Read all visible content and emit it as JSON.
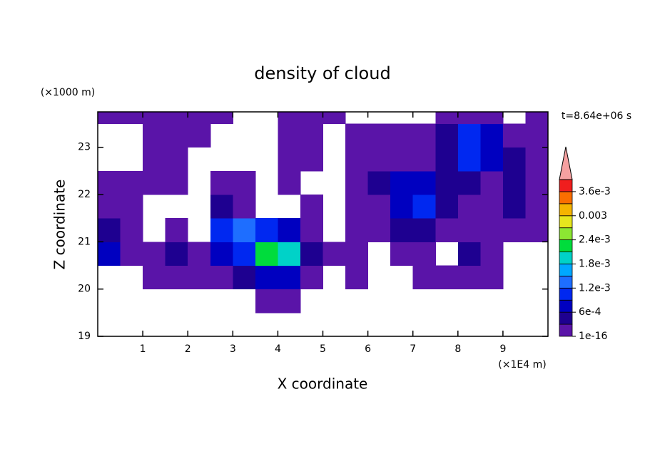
{
  "chart_data": {
    "type": "contour",
    "title": "density of cloud",
    "xlabel": "X coordinate",
    "ylabel": "Z coordinate",
    "x_unit_label": "(×1E4 m)",
    "y_unit_label": "(×1000 m)",
    "time_label": "t=8.64e+06 s",
    "xlim": [
      0,
      10
    ],
    "ylim": [
      19,
      23.75
    ],
    "xticks": [
      1,
      2,
      3,
      4,
      5,
      6,
      7,
      8,
      9
    ],
    "yticks": [
      19,
      20,
      21,
      22,
      23
    ],
    "x": [
      0.25,
      0.75,
      1.25,
      1.75,
      2.25,
      2.75,
      3.25,
      3.75,
      4.25,
      4.75,
      5.25,
      5.75,
      6.25,
      6.75,
      7.25,
      7.75,
      8.25,
      8.75,
      9.25,
      9.75
    ],
    "y": [
      19.75,
      20.25,
      20.75,
      21.25,
      21.75,
      22.25,
      22.75,
      23.25,
      23.75
    ],
    "values": [
      [
        0,
        0,
        0,
        0,
        0,
        0,
        0,
        0.0002,
        0.0002,
        0,
        0,
        0,
        0,
        0,
        0,
        0,
        0,
        0,
        0,
        0
      ],
      [
        0,
        0,
        0.0002,
        0.0002,
        0.0002,
        0.0002,
        0.0005,
        0.0008,
        0.0008,
        0.0002,
        0,
        0.0002,
        0,
        0,
        0.0002,
        0.0002,
        0.0002,
        0.0002,
        0,
        0
      ],
      [
        0.0008,
        0.0002,
        0.0002,
        0.0005,
        0.0002,
        0.0008,
        0.0011,
        0.0023,
        0.002,
        0.0005,
        0.0002,
        0.0002,
        0,
        0.0002,
        0.0002,
        0,
        0.0005,
        0.0002,
        0,
        0
      ],
      [
        0.0005,
        0.0002,
        0,
        0.0002,
        0,
        0.0011,
        0.0014,
        0.0011,
        0.0008,
        0.0002,
        0,
        0.0002,
        0.0002,
        0.0005,
        0.0005,
        0.0002,
        0.0002,
        0.0002,
        0.0002,
        0.0002
      ],
      [
        0.0002,
        0.0002,
        0,
        0,
        0,
        0.0005,
        0.0002,
        0,
        0,
        0.0002,
        0,
        0.0002,
        0.0002,
        0.0008,
        0.0011,
        0.0005,
        0.0002,
        0.0002,
        0.0005,
        0.0002
      ],
      [
        0.0002,
        0.0002,
        0.0002,
        0.0002,
        0,
        0.0002,
        0.0002,
        0,
        0.0002,
        0,
        0,
        0.0002,
        0.0005,
        0.0008,
        0.0008,
        0.0005,
        0.0005,
        0.0002,
        0.0005,
        0.0002
      ],
      [
        0,
        0,
        0.0002,
        0.0002,
        0,
        0,
        0,
        0,
        0.0002,
        0.0002,
        0,
        0.0002,
        0.0002,
        0.0002,
        0.0002,
        0.0005,
        0.0011,
        0.0008,
        0.0005,
        0.0002
      ],
      [
        0,
        0,
        0.0002,
        0.0002,
        0.0002,
        0,
        0,
        0,
        0.0002,
        0.0002,
        0,
        0.0002,
        0.0002,
        0.0002,
        0.0002,
        0.0005,
        0.0011,
        0.0008,
        0.0002,
        0.0002
      ],
      [
        0.0002,
        0.0002,
        0.0002,
        0.0002,
        0.0002,
        0.0002,
        0,
        0,
        0.0002,
        0.0002,
        0.0002,
        0,
        0,
        0,
        0,
        0.0002,
        0.0002,
        0.0002,
        0,
        0.0002
      ]
    ],
    "colorbar": {
      "levels": [
        1e-16,
        0.0003,
        0.0006,
        0.0009,
        0.0012,
        0.0015,
        0.0018,
        0.0021,
        0.0024,
        0.0027,
        0.003,
        0.0033,
        0.0036,
        0.0039
      ],
      "colors": [
        "#5a14a8",
        "#1e0090",
        "#0000c0",
        "#0028f0",
        "#1e6eff",
        "#00a8ff",
        "#00d2c8",
        "#00dc3c",
        "#8ce632",
        "#e6e61e",
        "#f5b400",
        "#fa6e00",
        "#f01e1e"
      ],
      "over_color": "#f5a0a0",
      "ticks": [
        1e-16,
        {
          "value": 0.0006,
          "label": "6e-4"
        },
        {
          "value": 0.0012,
          "label": "1.2e-3"
        },
        {
          "value": 0.0018,
          "label": "1.8e-3"
        },
        {
          "value": 0.0024,
          "label": "2.4e-3"
        },
        0.003,
        {
          "value": 0.0036,
          "label": "3.6e-3"
        }
      ]
    }
  }
}
